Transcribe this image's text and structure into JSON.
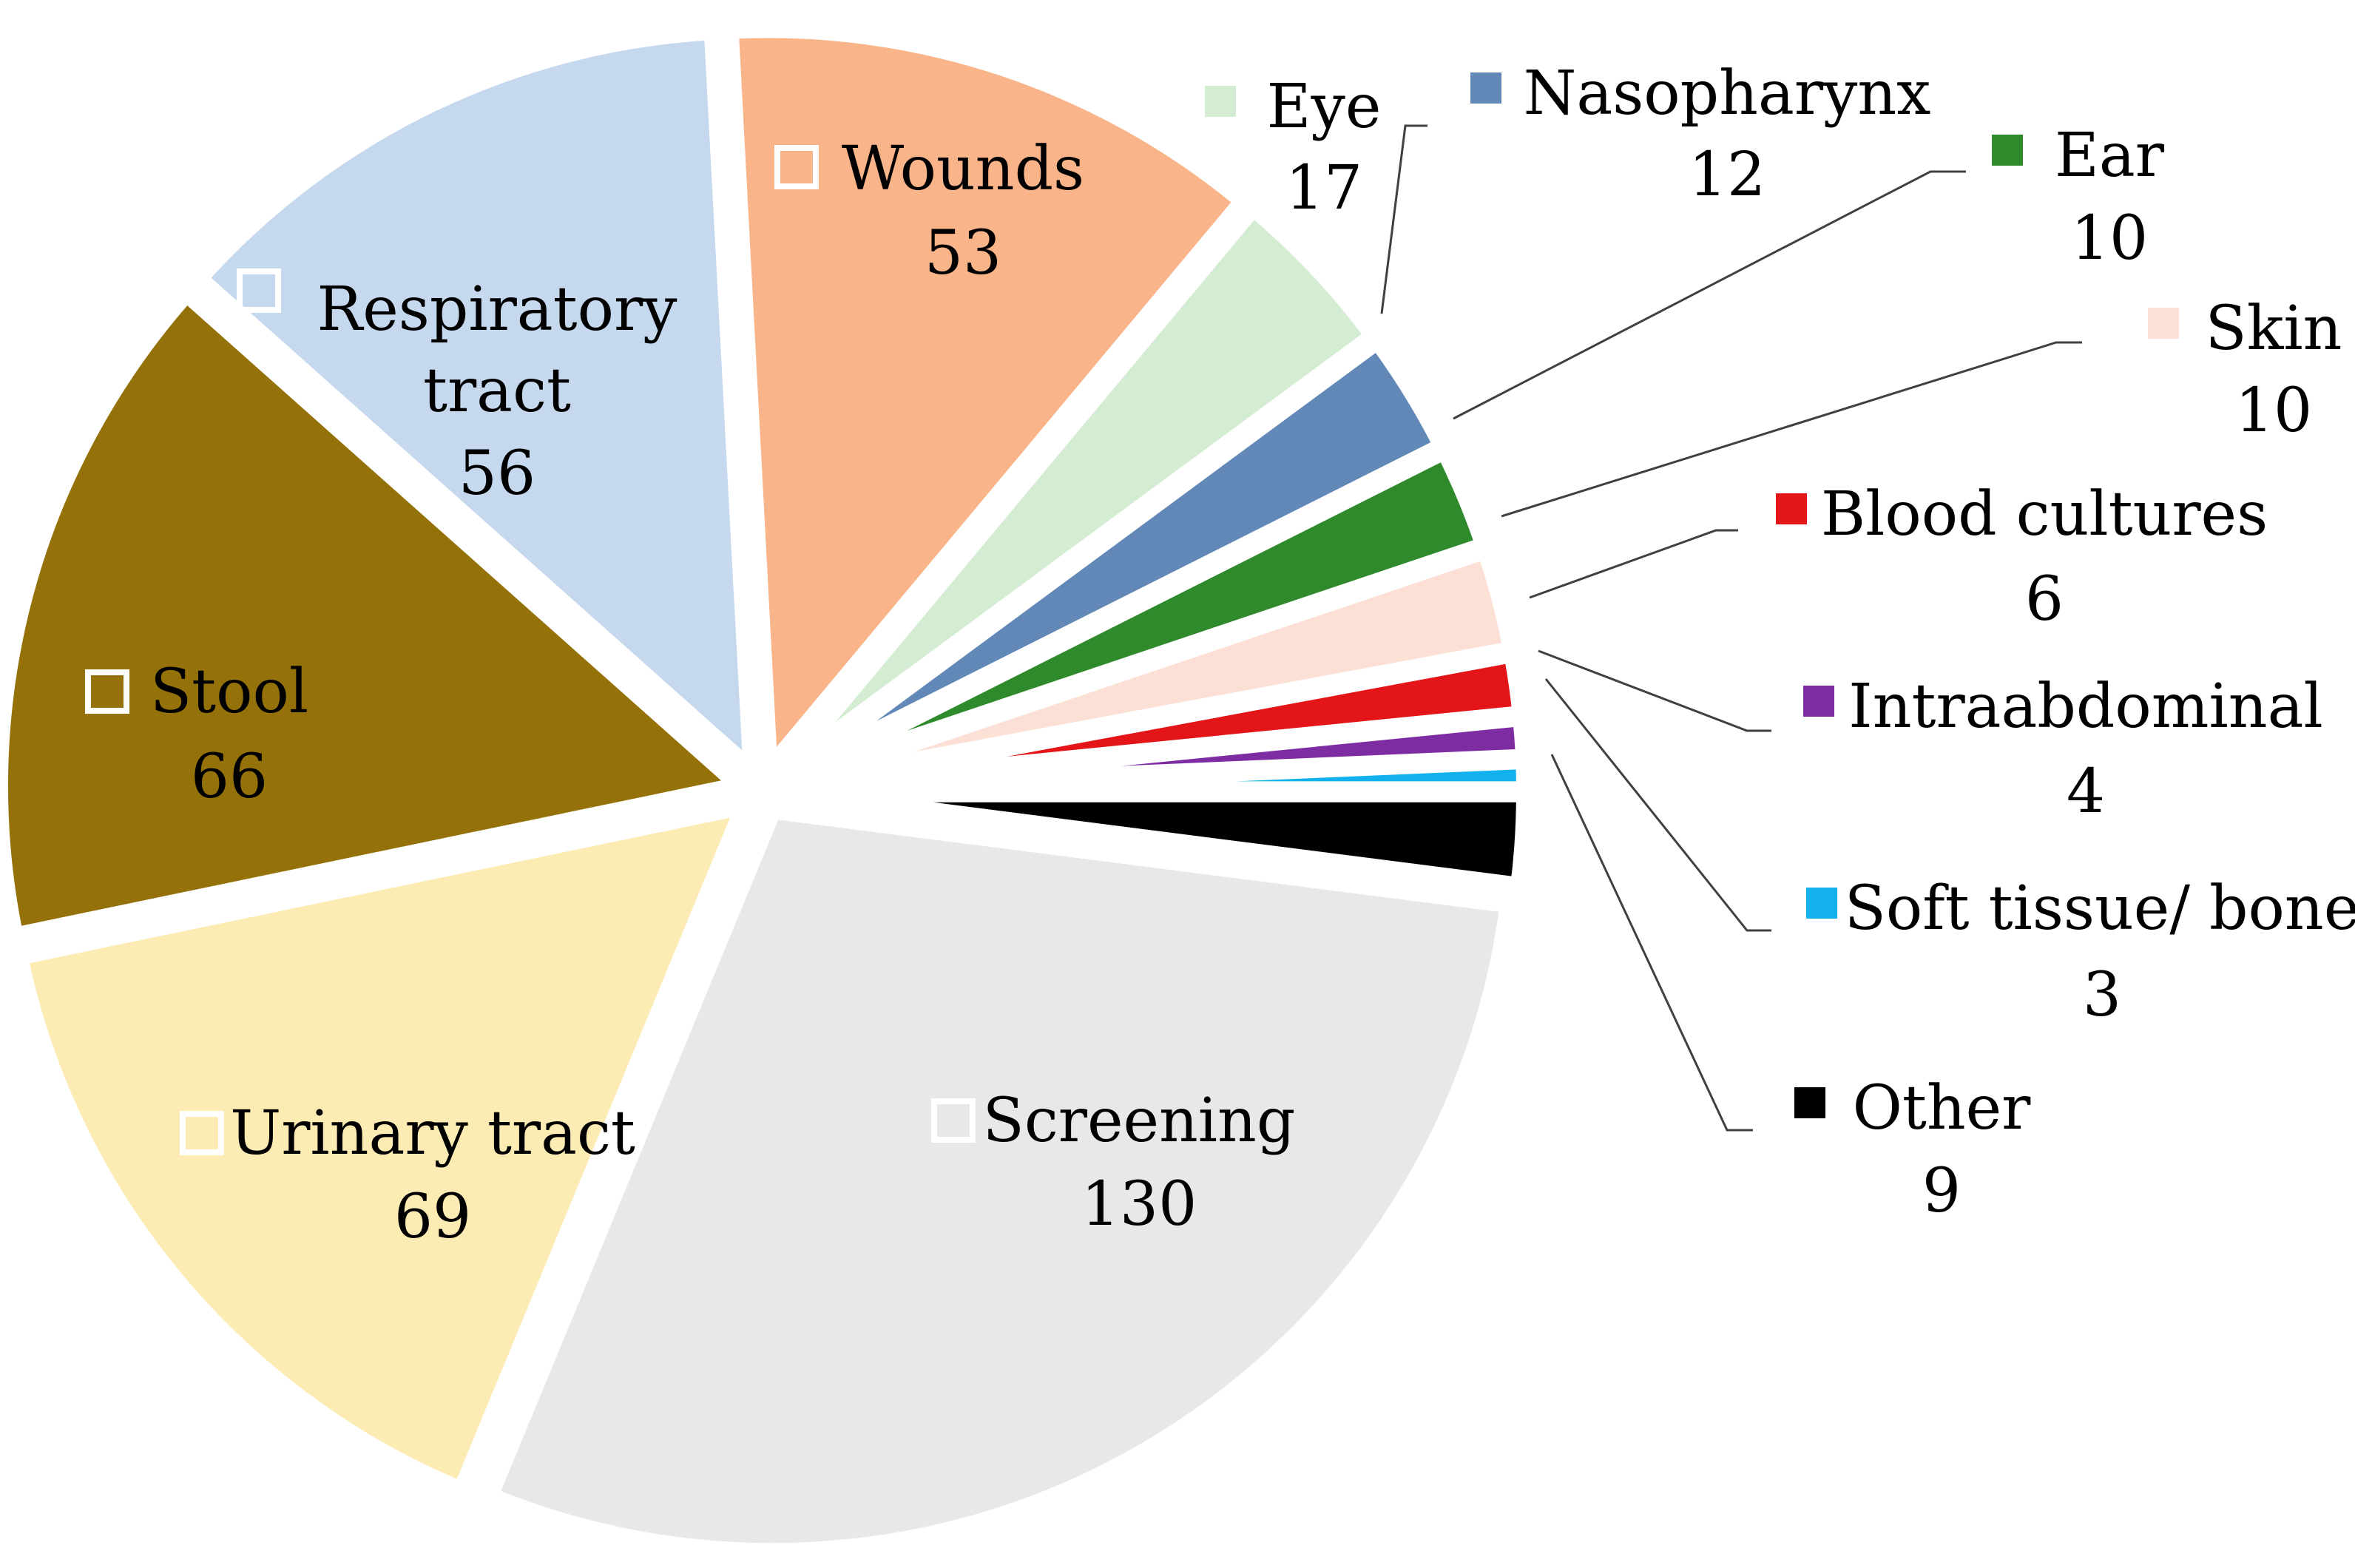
{
  "chart_data": {
    "type": "pie",
    "title": "",
    "slices": [
      {
        "label": "Other",
        "lines": [
          "Other"
        ],
        "value": 9,
        "value_text": "9",
        "color": "#000000",
        "label_style": "callout",
        "marker": "filled"
      },
      {
        "label": "Screening",
        "lines": [
          "Screening"
        ],
        "value": 130,
        "value_text": "130",
        "color": "#E8E8E8",
        "label_style": "inside",
        "marker": "outline"
      },
      {
        "label": "Urinary tract",
        "lines": [
          "Urinary tract"
        ],
        "value": 69,
        "value_text": "69",
        "color": "#FDEBB4",
        "label_style": "inside",
        "marker": "outline"
      },
      {
        "label": "Stool",
        "lines": [
          "Stool"
        ],
        "value": 66,
        "value_text": "66",
        "color": "#957209",
        "label_style": "inside",
        "marker": "outline"
      },
      {
        "label": "Respiratory tract",
        "lines": [
          "Respiratory",
          "tract"
        ],
        "value": 56,
        "value_text": "56",
        "color": "#C5D8EE",
        "label_style": "inside",
        "marker": "outline"
      },
      {
        "label": "Wounds",
        "lines": [
          "Wounds"
        ],
        "value": 53,
        "value_text": "53",
        "color": "#F9B48A",
        "label_style": "inside",
        "marker": "outline"
      },
      {
        "label": "Eye",
        "lines": [
          "Eye"
        ],
        "value": 17,
        "value_text": "17",
        "color": "#D4EDD2",
        "label_style": "callout",
        "marker": "filled"
      },
      {
        "label": "Nasopharynx",
        "lines": [
          "Nasopharynx"
        ],
        "value": 12,
        "value_text": "12",
        "color": "#6188B7",
        "label_style": "callout",
        "marker": "filled"
      },
      {
        "label": "Ear",
        "lines": [
          "Ear"
        ],
        "value": 10,
        "value_text": "10",
        "color": "#2F8A2C",
        "label_style": "callout",
        "marker": "filled"
      },
      {
        "label": "Skin",
        "lines": [
          "Skin"
        ],
        "value": 10,
        "value_text": "10",
        "color": "#FCE0D6",
        "label_style": "callout",
        "marker": "filled"
      },
      {
        "label": "Blood cultures",
        "lines": [
          "Blood cultures"
        ],
        "value": 6,
        "value_text": "6",
        "color": "#E31518",
        "label_style": "callout",
        "marker": "filled"
      },
      {
        "label": "Intraabdominal",
        "lines": [
          "Intraabdominal"
        ],
        "value": 4,
        "value_text": "4",
        "color": "#7D2CA2",
        "label_style": "callout",
        "marker": "filled"
      },
      {
        "label": "Soft tissue/ bone",
        "lines": [
          "Soft tissue/ bone"
        ],
        "value": 3,
        "value_text": "3",
        "color": "#12B0EC",
        "label_style": "callout",
        "marker": "filled"
      }
    ],
    "legend": "none",
    "label_content": "category and value",
    "exploded": true
  }
}
